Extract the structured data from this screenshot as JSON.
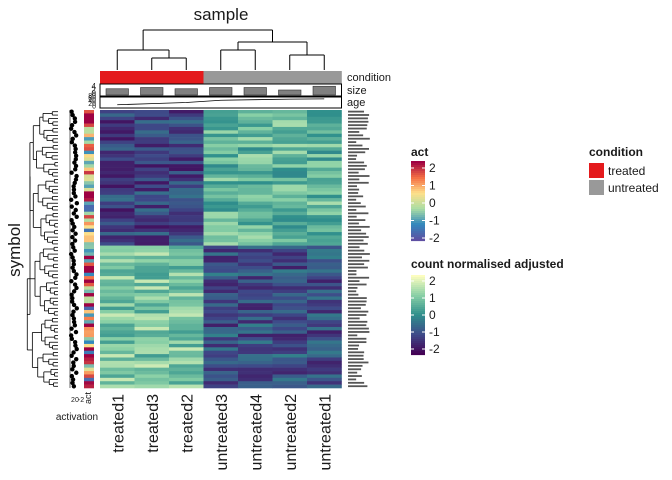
{
  "chart_data": {
    "type": "heatmap",
    "title": "sample",
    "ylabel": "symbol",
    "columns": [
      "treated1",
      "treated3",
      "treated2",
      "untreated3",
      "untreated4",
      "untreated2",
      "untreated1"
    ],
    "column_condition": [
      "treated",
      "treated",
      "treated",
      "untreated",
      "untreated",
      "untreated",
      "untreated"
    ],
    "top_annotations": [
      "condition",
      "size",
      "age"
    ],
    "size_tick_labels": [
      "4",
      "2",
      "0"
    ],
    "age_tick_labels": [
      "80",
      "60",
      "40",
      "20",
      "0"
    ],
    "row_annotation_label": "act",
    "row_annotation_ticks": [
      "2",
      "0",
      "-2"
    ],
    "side_annotation_label": "activation",
    "row_labels_count": 82,
    "n_upper_rows": 40,
    "n_lower_rows": 42,
    "clusters": {
      "upper": {
        "treated": -1.1,
        "untreated": 0.6
      },
      "lower": {
        "treated": 0.9,
        "untreated": -0.9
      }
    },
    "legends": {
      "act": {
        "title": "act",
        "ticks": [
          "2",
          "1",
          "0",
          "-1",
          "-2"
        ],
        "colors": [
          "#9e0142",
          "#f46d43",
          "#fee08b",
          "#abdda4",
          "#3288bd",
          "#5e4fa2"
        ]
      },
      "count": {
        "title": "count normalised adjusted",
        "ticks": [
          "2",
          "1",
          "0",
          "-1",
          "-2"
        ],
        "colors": [
          "#fcfdbf",
          "#89d0a6",
          "#2f8f8c",
          "#3e4a89",
          "#440154"
        ]
      },
      "condition": {
        "title": "condition",
        "entries": [
          {
            "label": "treated",
            "color": "#e41a1c"
          },
          {
            "label": "untreated",
            "color": "#999999"
          }
        ]
      }
    },
    "grid": false
  }
}
